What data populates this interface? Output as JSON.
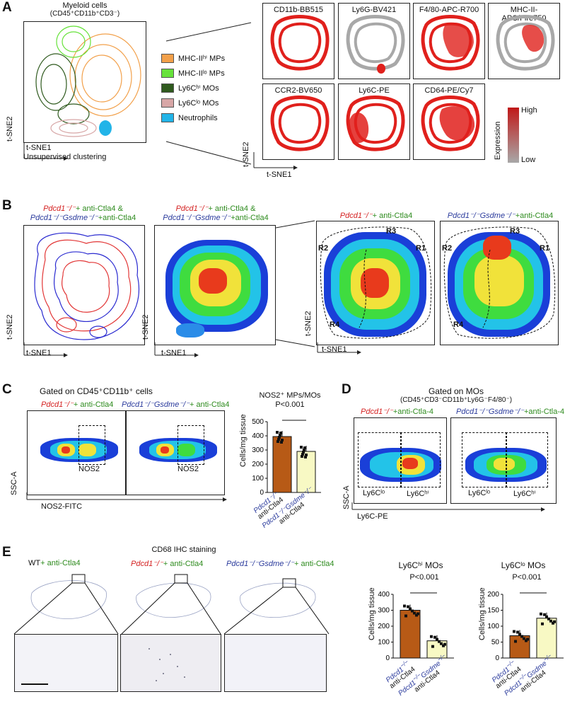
{
  "panelA": {
    "letter": "A",
    "title_line1": "Myeloid cells",
    "title_line2": "(CD45⁺CD11b⁺CD3⁻)",
    "xlabel": "t-SNE1",
    "ylabel": "t-SNE2",
    "caption": "Unsupervised clustering",
    "legend": [
      {
        "label": "MHC-IIʰⁱ MPs",
        "color": "#f2a04a"
      },
      {
        "label": "MHC-IIˡᵒ MPs",
        "color": "#66e23a"
      },
      {
        "label": "Ly6Cʰⁱ MOs",
        "color": "#2f5a1e"
      },
      {
        "label": "Ly6Cˡᵒ MOs",
        "color": "#d7a6a6"
      },
      {
        "label": "Neutrophils",
        "color": "#22b4e8"
      }
    ],
    "markers": [
      "CD11b-BB515",
      "Ly6G-BV421",
      "F4/80-APC-R700",
      "MHC-II-APC/Fire750",
      "CCR2-BV650",
      "Ly6C-PE",
      "CD64-PE/Cy7"
    ],
    "expression_label": "Expression",
    "high": "High",
    "low": "Low",
    "grid_xlabel": "t-SNE1",
    "grid_ylabel": "t-SNE2",
    "colors": {
      "high": "#e0201c",
      "low": "#a8a8a8"
    }
  },
  "panelB": {
    "letter": "B",
    "overlay_title_a": "Pdcd1⁻/⁻",
    "overlay_title_b": "+ anti-Ctla4 &",
    "overlay_title_c": "Pdcd1⁻/⁻Gsdme⁻/⁻",
    "overlay_title_d": "+anti-Ctla4",
    "heat_title_a": "Pdcd1⁻/⁻",
    "heat_title_b": "+ anti-Ctla4 &",
    "heat_title_c": "Pdcd1⁻/⁻Gsdme⁻/⁻",
    "heat_title_d": "+anti-Ctla4",
    "right1_a": "Pdcd1⁻/⁻",
    "right1_b": "+ anti-Ctla4",
    "right2_a": "Pdcd1⁻/⁻Gsdme⁻/⁻",
    "right2_b": "+anti-Ctla4",
    "regions": [
      "R1",
      "R2",
      "R3",
      "R4"
    ],
    "xlabel": "t-SNE1",
    "ylabel": "t-SNE2"
  },
  "panelC": {
    "letter": "C",
    "gate_title": "Gated on CD45⁺CD11b⁺ cells",
    "plot1_a": "Pdcd1⁻/⁻",
    "plot1_b": "+ anti-Ctla4",
    "plot2_a": "Pdcd1⁻/⁻Gsdme⁻/⁻",
    "plot2_b": "+ anti-Ctla4",
    "gate_label": "NOS2",
    "xlabel": "NOS2-FITC",
    "ylabel": "SSC-A",
    "bar_title": "NOS2⁺ MPs/MOs",
    "pvalue": "P<0.001",
    "bar_ylabel": "Cells/mg tissue",
    "bar_yticks": [
      "0",
      "100",
      "200",
      "300",
      "400",
      "500"
    ],
    "bar_groups": [
      {
        "l1": "Pdcd1⁻/⁻",
        "l2": "anti-Ctla4",
        "value": 395,
        "color": "#b75a16"
      },
      {
        "l1": "Pdcd1⁻/⁻Gsdme⁻/⁻",
        "l2": "anti-Ctla4",
        "value": 290,
        "color": "#f8f9c4"
      }
    ]
  },
  "panelD": {
    "letter": "D",
    "gate_title1": "Gated on MOs",
    "gate_title2": "(CD45⁺CD3⁻CD11b⁺Ly6G⁻F4/80⁻)",
    "plot1_a": "Pdcd1⁻/⁻",
    "plot1_b": "+anti-Ctla-4",
    "plot2_a": "Pdcd1⁻/⁻Gsdme⁻/⁻",
    "plot2_b": "+anti-Ctla-4",
    "lo_label": "Ly6Cˡᵒ",
    "hi_label": "Ly6Cʰⁱ",
    "xlabel": "Ly6C-PE",
    "ylabel": "SSC-A"
  },
  "panelE": {
    "letter": "E",
    "title": "CD68 IHC staining",
    "col1_a": "WT",
    "col1_b": "+ anti-Ctla4",
    "col2_a": "Pdcd1⁻/⁻",
    "col2_b": "+ anti-Ctla4",
    "col3_a": "Pdcd1⁻/⁻Gsdme⁻/⁻",
    "col3_b": "+ anti-Ctla4"
  },
  "chart_data": [
    {
      "type": "bar",
      "title": "Ly6Cʰⁱ MOs",
      "ylabel": "Cells/mg tissue",
      "yticks": [
        "0",
        "100",
        "200",
        "300",
        "400"
      ],
      "ylim": [
        0,
        400
      ],
      "pvalue": "P<0.001",
      "categories": [
        "Pdcd1⁻/⁻ anti-Ctla4",
        "Pdcd1⁻/⁻Gsdme⁻/⁻ anti-Ctla4"
      ],
      "values": [
        300,
        108
      ],
      "colors": [
        "#b75a16",
        "#f8f9c4"
      ]
    },
    {
      "type": "bar",
      "title": "Ly6Cˡᵒ MOs",
      "ylabel": "Cells/mg tissue",
      "yticks": [
        "0",
        "50",
        "100",
        "150",
        "200"
      ],
      "ylim": [
        0,
        200
      ],
      "pvalue": "P<0.001",
      "categories": [
        "Pdcd1⁻/⁻ anti-Ctla4",
        "Pdcd1⁻/⁻Gsdme⁻/⁻ anti-Ctla4"
      ],
      "values": [
        70,
        125
      ],
      "colors": [
        "#b75a16",
        "#f8f9c4"
      ]
    }
  ]
}
